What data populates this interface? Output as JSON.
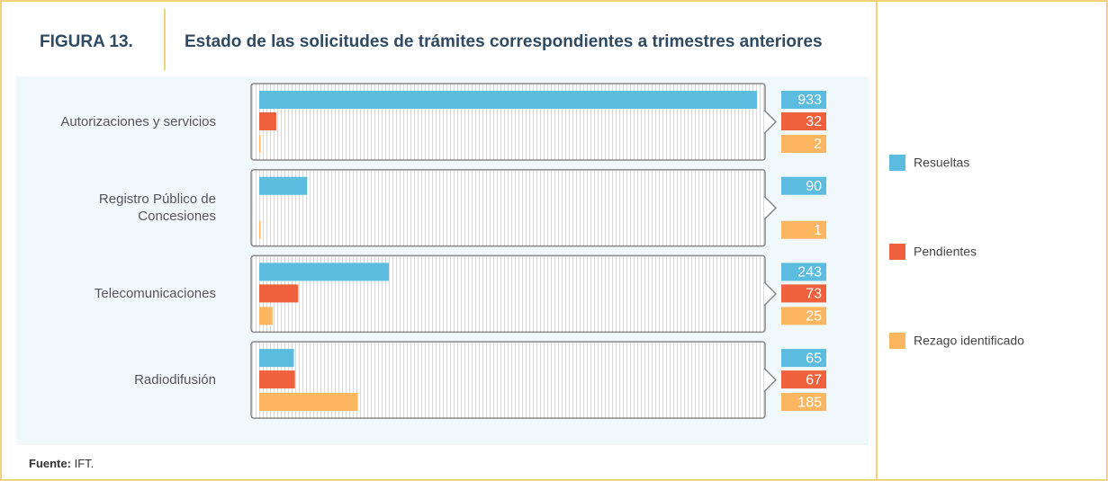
{
  "figure_label": "FIGURA 13.",
  "source_label": "Fuente:",
  "source": "IFT.",
  "chart_data": {
    "type": "bar",
    "orientation": "horizontal",
    "title": "Estado de las solicitudes de trámites correspondientes a trimestres anteriores",
    "categories": [
      "Autorizaciones y servicios",
      "Registro Público de Concesiones",
      "Telecomunicaciones",
      "Radiodifusión"
    ],
    "series": [
      {
        "name": "Resueltas",
        "color": "#5bbcdf",
        "values": [
          933,
          90,
          243,
          65
        ]
      },
      {
        "name": "Pendientes",
        "color": "#ef613d",
        "values": [
          32,
          null,
          73,
          67
        ]
      },
      {
        "name": "Rezago identificado",
        "color": "#fcb65f",
        "values": [
          2,
          1,
          25,
          185
        ]
      }
    ],
    "legend": "right"
  }
}
